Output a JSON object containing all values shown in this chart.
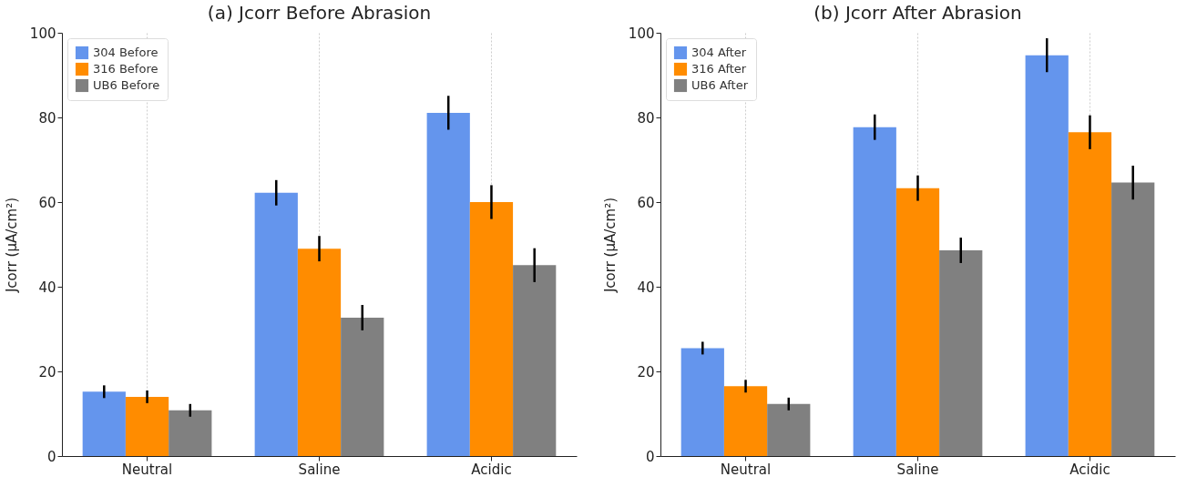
{
  "chart_data": [
    {
      "type": "bar",
      "title": "(a) Jcorr Before Abrasion",
      "ylabel": "Jcorr (μA/cm²)",
      "categories": [
        "Neutral",
        "Saline",
        "Acidic"
      ],
      "ylim": [
        0,
        100
      ],
      "yticks": [
        0,
        20,
        40,
        60,
        80,
        100
      ],
      "grid": "x",
      "legend": "top left",
      "series": [
        {
          "name": "304 Before",
          "color": "#6495ed",
          "values": [
            15.2,
            62.2,
            81.1
          ],
          "errors": [
            1.5,
            3,
            4
          ]
        },
        {
          "name": "316 Before",
          "color": "#ff8c00",
          "values": [
            14,
            49,
            60
          ],
          "errors": [
            1.5,
            3,
            4
          ]
        },
        {
          "name": "UB6 Before",
          "color": "#808080",
          "values": [
            10.8,
            32.7,
            45.1
          ],
          "errors": [
            1.5,
            3,
            4
          ]
        }
      ]
    },
    {
      "type": "bar",
      "title": "(b) Jcorr After Abrasion",
      "ylabel": "Jcorr (μA/cm²)",
      "categories": [
        "Neutral",
        "Saline",
        "Acidic"
      ],
      "ylim": [
        0,
        100
      ],
      "yticks": [
        0,
        20,
        40,
        60,
        80,
        100
      ],
      "grid": "x",
      "legend": "top left",
      "series": [
        {
          "name": "304 After",
          "color": "#6495ed",
          "values": [
            25.5,
            77.7,
            94.7
          ],
          "errors": [
            1.5,
            3,
            4
          ]
        },
        {
          "name": "316 After",
          "color": "#ff8c00",
          "values": [
            16.5,
            63.3,
            76.5
          ],
          "errors": [
            1.5,
            3,
            4
          ]
        },
        {
          "name": "UB6 After",
          "color": "#808080",
          "values": [
            12.3,
            48.6,
            64.6
          ],
          "errors": [
            1.5,
            3,
            4
          ]
        }
      ]
    }
  ]
}
